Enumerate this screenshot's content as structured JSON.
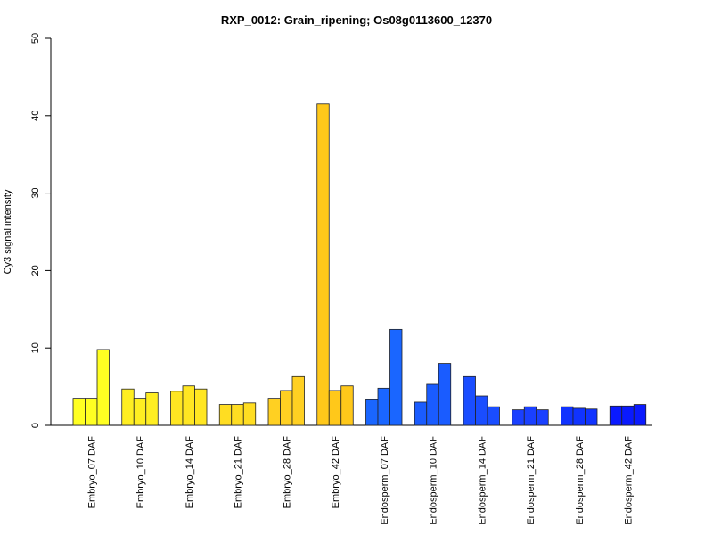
{
  "chart_data": {
    "type": "bar",
    "title": "RXP_0012: Grain_ripening; Os08g0113600_12370",
    "xlabel": "",
    "ylabel": "Cy3 signal intensity",
    "ylim": [
      0,
      50
    ],
    "yticks": [
      "0",
      "10",
      "20",
      "30",
      "40",
      "50"
    ],
    "grid": false,
    "legend": "none",
    "replicates_per_group": 3,
    "categories": [
      "Embryo_07 DAF",
      "Embryo_10 DAF",
      "Embryo_14 DAF",
      "Embryo_21 DAF",
      "Embryo_28 DAF",
      "Embryo_42 DAF",
      "Endosperm_07 DAF",
      "Endosperm_10 DAF",
      "Endosperm_14 DAF",
      "Endosperm_21 DAF",
      "Endosperm_28 DAF",
      "Endosperm_42 DAF"
    ],
    "values": [
      [
        3.5,
        3.5,
        9.8
      ],
      [
        4.7,
        3.5,
        4.2
      ],
      [
        4.4,
        5.1,
        4.7
      ],
      [
        2.7,
        2.7,
        2.9
      ],
      [
        3.5,
        4.5,
        6.3
      ],
      [
        41.5,
        4.5,
        5.1
      ],
      [
        3.3,
        4.8,
        12.4
      ],
      [
        3.0,
        5.3,
        8.0
      ],
      [
        6.3,
        3.8,
        2.4
      ],
      [
        2.0,
        2.4,
        2.0
      ],
      [
        2.4,
        2.2,
        2.1
      ],
      [
        2.5,
        2.5,
        2.7
      ]
    ],
    "colors": [
      "#ffff22",
      "#ffee22",
      "#ffe622",
      "#ffdd22",
      "#ffd022",
      "#ffc81a",
      "#1a66ff",
      "#1a5cff",
      "#1a4dff",
      "#1a40ff",
      "#1033ff",
      "#0a1aff"
    ]
  }
}
